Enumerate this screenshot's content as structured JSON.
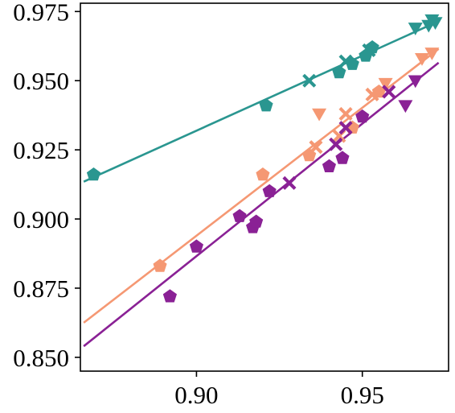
{
  "chart_data": {
    "type": "scatter",
    "title": "",
    "xlabel": "",
    "ylabel": "",
    "xlim": [
      0.865,
      0.976
    ],
    "ylim": [
      0.845,
      0.978
    ],
    "xticks": [
      "0.90",
      "0.95"
    ],
    "xtick_values": [
      0.9,
      0.95
    ],
    "yticks": [
      "0.850",
      "0.875",
      "0.900",
      "0.925",
      "0.950",
      "0.975"
    ],
    "ytick_values": [
      0.85,
      0.875,
      0.9,
      0.925,
      0.95,
      0.975
    ],
    "grid": false,
    "legend": "none",
    "series": [
      {
        "color": "#2a9690",
        "fit_line": [
          [
            0.866,
            0.9135
          ],
          [
            0.973,
            0.9715
          ]
        ],
        "points": [
          {
            "x": 0.869,
            "y": 0.916,
            "marker": "pentagon"
          },
          {
            "x": 0.921,
            "y": 0.941,
            "marker": "pentagon"
          },
          {
            "x": 0.934,
            "y": 0.95,
            "marker": "x"
          },
          {
            "x": 0.943,
            "y": 0.953,
            "marker": "pentagon"
          },
          {
            "x": 0.945,
            "y": 0.957,
            "marker": "x"
          },
          {
            "x": 0.947,
            "y": 0.956,
            "marker": "pentagon"
          },
          {
            "x": 0.951,
            "y": 0.959,
            "marker": "pentagon"
          },
          {
            "x": 0.952,
            "y": 0.961,
            "marker": "x"
          },
          {
            "x": 0.953,
            "y": 0.962,
            "marker": "pentagon"
          },
          {
            "x": 0.966,
            "y": 0.969,
            "marker": "triangle-down"
          },
          {
            "x": 0.97,
            "y": 0.97,
            "marker": "triangle-down"
          },
          {
            "x": 0.971,
            "y": 0.972,
            "marker": "triangle-down"
          },
          {
            "x": 0.972,
            "y": 0.971,
            "marker": "triangle-down"
          }
        ]
      },
      {
        "color": "#f59873",
        "fit_line": [
          [
            0.866,
            0.8625
          ],
          [
            0.973,
            0.9615
          ]
        ],
        "points": [
          {
            "x": 0.889,
            "y": 0.883,
            "marker": "pentagon"
          },
          {
            "x": 0.92,
            "y": 0.916,
            "marker": "pentagon"
          },
          {
            "x": 0.934,
            "y": 0.923,
            "marker": "pentagon"
          },
          {
            "x": 0.936,
            "y": 0.926,
            "marker": "x"
          },
          {
            "x": 0.937,
            "y": 0.938,
            "marker": "triangle-down"
          },
          {
            "x": 0.943,
            "y": 0.93,
            "marker": "x"
          },
          {
            "x": 0.945,
            "y": 0.938,
            "marker": "x"
          },
          {
            "x": 0.947,
            "y": 0.933,
            "marker": "pentagon"
          },
          {
            "x": 0.953,
            "y": 0.945,
            "marker": "x"
          },
          {
            "x": 0.955,
            "y": 0.946,
            "marker": "pentagon"
          },
          {
            "x": 0.957,
            "y": 0.949,
            "marker": "triangle-down"
          },
          {
            "x": 0.968,
            "y": 0.958,
            "marker": "triangle-down"
          },
          {
            "x": 0.971,
            "y": 0.96,
            "marker": "triangle-down"
          }
        ]
      },
      {
        "color": "#8a2195",
        "fit_line": [
          [
            0.866,
            0.854
          ],
          [
            0.973,
            0.9565
          ]
        ],
        "points": [
          {
            "x": 0.892,
            "y": 0.872,
            "marker": "pentagon"
          },
          {
            "x": 0.9,
            "y": 0.89,
            "marker": "pentagon"
          },
          {
            "x": 0.913,
            "y": 0.901,
            "marker": "pentagon"
          },
          {
            "x": 0.917,
            "y": 0.897,
            "marker": "pentagon"
          },
          {
            "x": 0.918,
            "y": 0.899,
            "marker": "pentagon"
          },
          {
            "x": 0.922,
            "y": 0.91,
            "marker": "pentagon"
          },
          {
            "x": 0.928,
            "y": 0.913,
            "marker": "x"
          },
          {
            "x": 0.94,
            "y": 0.919,
            "marker": "pentagon"
          },
          {
            "x": 0.942,
            "y": 0.927,
            "marker": "x"
          },
          {
            "x": 0.944,
            "y": 0.922,
            "marker": "pentagon"
          },
          {
            "x": 0.945,
            "y": 0.933,
            "marker": "x"
          },
          {
            "x": 0.95,
            "y": 0.937,
            "marker": "pentagon"
          },
          {
            "x": 0.958,
            "y": 0.946,
            "marker": "x"
          },
          {
            "x": 0.963,
            "y": 0.941,
            "marker": "triangle-down"
          },
          {
            "x": 0.966,
            "y": 0.95,
            "marker": "triangle-down"
          }
        ]
      }
    ]
  }
}
